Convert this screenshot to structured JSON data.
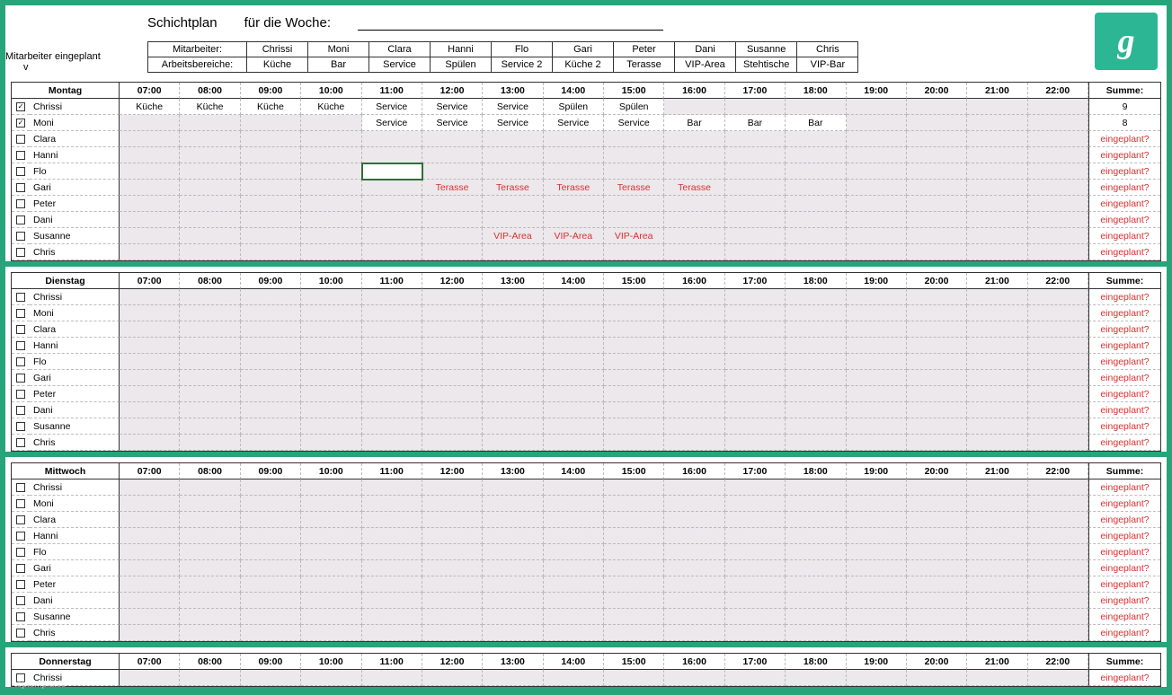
{
  "colors": {
    "page_bg": "#28a47a",
    "accent": "#2db694",
    "grid_alt": "#ece8ec",
    "red_text": "#d93030",
    "border": "#333333"
  },
  "title": "Schichtplan",
  "week_label": "für die Woche:",
  "side_label": "Mitarbeiter eingeplant",
  "side_label2": "v",
  "staff_header": {
    "row1_label": "Mitarbeiter:",
    "row2_label": "Arbeitsbereiche:",
    "employees": [
      "Chrissi",
      "Moni",
      "Clara",
      "Hanni",
      "Flo",
      "Gari",
      "Peter",
      "Dani",
      "Susanne",
      "Chris"
    ],
    "areas": [
      "Küche",
      "Bar",
      "Service",
      "Spülen",
      "Service 2",
      "Küche 2",
      "Terasse",
      "VIP-Area",
      "Stehtische",
      "VIP-Bar"
    ]
  },
  "hours": [
    "07:00",
    "08:00",
    "09:00",
    "10:00",
    "11:00",
    "12:00",
    "13:00",
    "14:00",
    "15:00",
    "16:00",
    "17:00",
    "18:00",
    "19:00",
    "20:00",
    "21:00",
    "22:00"
  ],
  "sum_label": "Summe:",
  "not_planned": "eingeplant?",
  "active_cell": {
    "day": 0,
    "row": 4,
    "hour": 4
  },
  "days": [
    {
      "name": "Montag",
      "rows": [
        {
          "name": "Chrissi",
          "checked": true,
          "sum": "9",
          "cells": {
            "0": "Küche",
            "1": "Küche",
            "2": "Küche",
            "3": "Küche",
            "4": "Service",
            "5": "Service",
            "6": "Service",
            "7": "Spülen",
            "8": "Spülen"
          }
        },
        {
          "name": "Moni",
          "checked": true,
          "sum": "8",
          "cells": {
            "4": "Service",
            "5": "Service",
            "6": "Service",
            "7": "Service",
            "8": "Service",
            "9": "Bar",
            "10": "Bar",
            "11": "Bar"
          }
        },
        {
          "name": "Clara",
          "checked": false,
          "sum": "eingeplant?",
          "cells": {}
        },
        {
          "name": "Hanni",
          "checked": false,
          "sum": "eingeplant?",
          "cells": {}
        },
        {
          "name": "Flo",
          "checked": false,
          "sum": "eingeplant?",
          "cells": {}
        },
        {
          "name": "Gari",
          "checked": false,
          "sum": "eingeplant?",
          "red": true,
          "cells": {
            "5": "Terasse",
            "6": "Terasse",
            "7": "Terasse",
            "8": "Terasse",
            "9": "Terasse"
          }
        },
        {
          "name": "Peter",
          "checked": false,
          "sum": "eingeplant?",
          "cells": {}
        },
        {
          "name": "Dani",
          "checked": false,
          "sum": "eingeplant?",
          "cells": {}
        },
        {
          "name": "Susanne",
          "checked": false,
          "sum": "eingeplant?",
          "red": true,
          "cells": {
            "6": "VIP-Area",
            "7": "VIP-Area",
            "8": "VIP-Area"
          }
        },
        {
          "name": "Chris",
          "checked": false,
          "sum": "eingeplant?",
          "cells": {}
        }
      ]
    },
    {
      "name": "Dienstag",
      "rows": [
        {
          "name": "Chrissi",
          "checked": false,
          "sum": "eingeplant?",
          "cells": {}
        },
        {
          "name": "Moni",
          "checked": false,
          "sum": "eingeplant?",
          "cells": {}
        },
        {
          "name": "Clara",
          "checked": false,
          "sum": "eingeplant?",
          "cells": {}
        },
        {
          "name": "Hanni",
          "checked": false,
          "sum": "eingeplant?",
          "cells": {}
        },
        {
          "name": "Flo",
          "checked": false,
          "sum": "eingeplant?",
          "cells": {}
        },
        {
          "name": "Gari",
          "checked": false,
          "sum": "eingeplant?",
          "cells": {}
        },
        {
          "name": "Peter",
          "checked": false,
          "sum": "eingeplant?",
          "cells": {}
        },
        {
          "name": "Dani",
          "checked": false,
          "sum": "eingeplant?",
          "cells": {}
        },
        {
          "name": "Susanne",
          "checked": false,
          "sum": "eingeplant?",
          "cells": {}
        },
        {
          "name": "Chris",
          "checked": false,
          "sum": "eingeplant?",
          "cells": {}
        }
      ]
    },
    {
      "name": "Mittwoch",
      "rows": [
        {
          "name": "Chrissi",
          "checked": false,
          "sum": "eingeplant?",
          "cells": {}
        },
        {
          "name": "Moni",
          "checked": false,
          "sum": "eingeplant?",
          "cells": {}
        },
        {
          "name": "Clara",
          "checked": false,
          "sum": "eingeplant?",
          "cells": {}
        },
        {
          "name": "Hanni",
          "checked": false,
          "sum": "eingeplant?",
          "cells": {}
        },
        {
          "name": "Flo",
          "checked": false,
          "sum": "eingeplant?",
          "cells": {}
        },
        {
          "name": "Gari",
          "checked": false,
          "sum": "eingeplant?",
          "cells": {}
        },
        {
          "name": "Peter",
          "checked": false,
          "sum": "eingeplant?",
          "cells": {}
        },
        {
          "name": "Dani",
          "checked": false,
          "sum": "eingeplant?",
          "cells": {}
        },
        {
          "name": "Susanne",
          "checked": false,
          "sum": "eingeplant?",
          "cells": {}
        },
        {
          "name": "Chris",
          "checked": false,
          "sum": "eingeplant?",
          "cells": {}
        }
      ]
    },
    {
      "name": "Donnerstag",
      "rows": [
        {
          "name": "Chrissi",
          "checked": false,
          "sum": "eingeplant?",
          "cells": {}
        }
      ]
    }
  ],
  "watermark": "toptemplates"
}
